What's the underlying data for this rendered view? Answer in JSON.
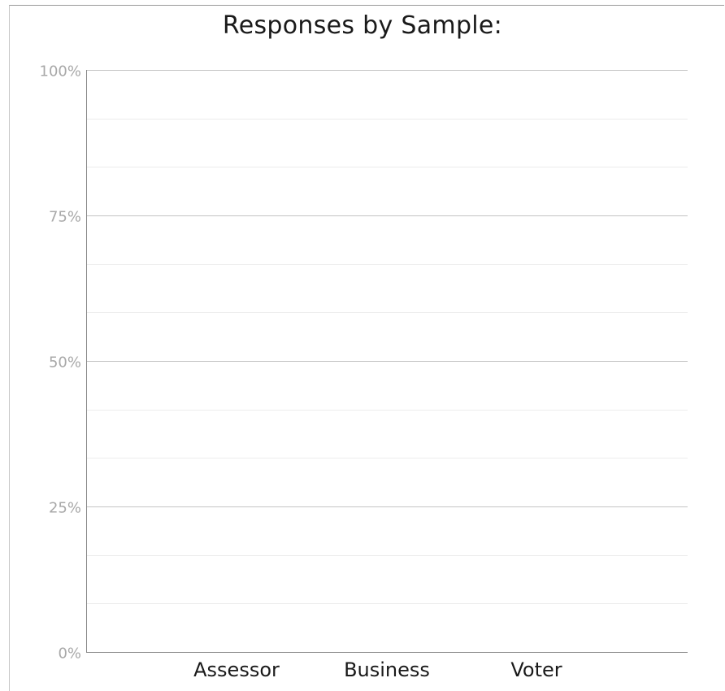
{
  "chart_data": {
    "type": "bar",
    "title": "Responses by Sample:",
    "xlabel": "",
    "ylabel": "",
    "categories": [
      "Assessor",
      "Business",
      "Voter"
    ],
    "values": [
      0,
      0,
      0
    ],
    "ylim": [
      0,
      100
    ],
    "yticks": [
      0,
      25,
      50,
      75,
      100
    ],
    "ytick_labels": [
      "0%",
      "25%",
      "50%",
      "75%",
      "100%"
    ],
    "minor_gridlines_per_major": 3,
    "grid": true,
    "legend": "none"
  }
}
